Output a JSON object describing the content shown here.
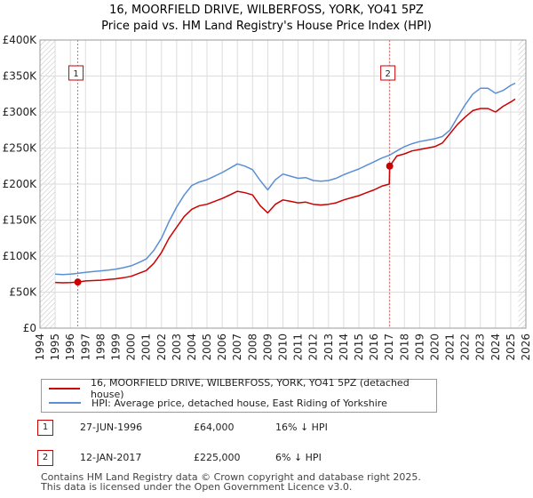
{
  "chart_data": {
    "type": "line",
    "title": "16, MOORFIELD DRIVE, WILBERFOSS, YORK, YO41 5PZ",
    "subtitle": "Price paid vs. HM Land Registry's House Price Index (HPI)",
    "xlabel": "",
    "ylabel": "",
    "xlim": [
      1994,
      2026
    ],
    "ylim": [
      0,
      400000
    ],
    "x_ticks": [
      "1994",
      "1995",
      "1996",
      "1997",
      "1998",
      "1999",
      "2000",
      "2001",
      "2002",
      "2003",
      "2004",
      "2005",
      "2006",
      "2007",
      "2008",
      "2009",
      "2010",
      "2011",
      "2012",
      "2013",
      "2014",
      "2015",
      "2016",
      "2017",
      "2018",
      "2019",
      "2020",
      "2021",
      "2022",
      "2023",
      "2024",
      "2025",
      "2026"
    ],
    "y_ticks": [
      {
        "value": 0,
        "label": "£0"
      },
      {
        "value": 50000,
        "label": "£50K"
      },
      {
        "value": 100000,
        "label": "£100K"
      },
      {
        "value": 150000,
        "label": "£150K"
      },
      {
        "value": 200000,
        "label": "£200K"
      },
      {
        "value": 250000,
        "label": "£250K"
      },
      {
        "value": 300000,
        "label": "£300K"
      },
      {
        "value": 350000,
        "label": "£350K"
      },
      {
        "value": 400000,
        "label": "£400K"
      }
    ],
    "grid": true,
    "series": [
      {
        "name": "16, MOORFIELD DRIVE, WILBERFOSS, YORK, YO41 5PZ (detached house)",
        "color": "#cc0000",
        "x": [
          1995.0,
          1995.5,
          1996.0,
          1996.49,
          1997.0,
          1997.5,
          1998.0,
          1998.5,
          1999.0,
          1999.5,
          2000.0,
          2000.5,
          2001.0,
          2001.5,
          2002.0,
          2002.5,
          2003.0,
          2003.5,
          2004.0,
          2004.5,
          2005.0,
          2005.5,
          2006.0,
          2006.5,
          2007.0,
          2007.5,
          2008.0,
          2008.5,
          2009.0,
          2009.5,
          2010.0,
          2010.5,
          2011.0,
          2011.5,
          2012.0,
          2012.5,
          2013.0,
          2013.5,
          2014.0,
          2014.5,
          2015.0,
          2015.5,
          2016.0,
          2016.5,
          2017.0,
          2017.03,
          2017.5,
          2018.0,
          2018.5,
          2019.0,
          2019.5,
          2020.0,
          2020.5,
          2021.0,
          2021.5,
          2022.0,
          2022.5,
          2023.0,
          2023.5,
          2024.0,
          2024.5,
          2025.0,
          2025.3
        ],
        "values": [
          63500,
          63000,
          63200,
          64000,
          65500,
          66000,
          66500,
          67500,
          68500,
          70000,
          72000,
          76000,
          80000,
          90000,
          105000,
          125000,
          140000,
          155000,
          165000,
          170000,
          172000,
          176000,
          180000,
          185000,
          190000,
          188000,
          185000,
          170000,
          160000,
          172000,
          178000,
          176000,
          174000,
          175000,
          172000,
          171000,
          172000,
          174000,
          178000,
          181000,
          184000,
          188000,
          192000,
          197000,
          200000,
          225000,
          239000,
          242000,
          246000,
          248000,
          250000,
          252000,
          257000,
          270000,
          283000,
          293000,
          302000,
          305000,
          305000,
          300000,
          308000,
          314000,
          318000
        ]
      },
      {
        "name": "HPI: Average price, detached house, East Riding of Yorkshire",
        "color": "#5b8fd4",
        "x": [
          1995.0,
          1995.5,
          1996.0,
          1996.49,
          1997.0,
          1997.5,
          1998.0,
          1998.5,
          1999.0,
          1999.5,
          2000.0,
          2000.5,
          2001.0,
          2001.5,
          2002.0,
          2002.5,
          2003.0,
          2003.5,
          2004.0,
          2004.5,
          2005.0,
          2005.5,
          2006.0,
          2006.5,
          2007.0,
          2007.5,
          2008.0,
          2008.5,
          2009.0,
          2009.5,
          2010.0,
          2010.5,
          2011.0,
          2011.5,
          2012.0,
          2012.5,
          2013.0,
          2013.5,
          2014.0,
          2014.5,
          2015.0,
          2015.5,
          2016.0,
          2016.5,
          2017.0,
          2017.5,
          2018.0,
          2018.5,
          2019.0,
          2019.5,
          2020.0,
          2020.5,
          2021.0,
          2021.5,
          2022.0,
          2022.5,
          2023.0,
          2023.5,
          2024.0,
          2024.5,
          2025.0,
          2025.3
        ],
        "values": [
          75000,
          74500,
          75000,
          76000,
          77500,
          78500,
          79500,
          80500,
          82000,
          84000,
          86500,
          91000,
          96000,
          108000,
          125000,
          148000,
          168000,
          185000,
          198000,
          203000,
          206000,
          211000,
          216000,
          222000,
          228000,
          225000,
          220000,
          205000,
          192000,
          206000,
          214000,
          211000,
          208000,
          209000,
          205000,
          204000,
          205000,
          208000,
          213000,
          217000,
          221000,
          226000,
          231000,
          236000,
          240000,
          246000,
          252000,
          256000,
          259000,
          261000,
          263000,
          266000,
          275000,
          293000,
          310000,
          325000,
          333000,
          333000,
          326000,
          330000,
          337000,
          340000
        ]
      }
    ],
    "markers": [
      {
        "label": "1",
        "x": 1996.49,
        "value": 64000
      },
      {
        "label": "2",
        "x": 2017.03,
        "value": 225000
      }
    ]
  },
  "legend": {
    "property": "16, MOORFIELD DRIVE, WILBERFOSS, YORK, YO41 5PZ (detached house)",
    "hpi": "HPI: Average price, detached house, East Riding of Yorkshire"
  },
  "sales": [
    {
      "num": "1",
      "date": "27-JUN-1996",
      "price": "£64,000",
      "hpi": "16% ↓ HPI"
    },
    {
      "num": "2",
      "date": "12-JAN-2017",
      "price": "£225,000",
      "hpi": "6% ↓ HPI"
    }
  ],
  "footer": {
    "line1": "Contains HM Land Registry data © Crown copyright and database right 2025.",
    "line2": "This data is licensed under the Open Government Licence v3.0."
  },
  "colors": {
    "property": "#cc0000",
    "hpi": "#5b8fd4",
    "grid": "#dddddd",
    "hatch": "#bbbbbb",
    "marker_line": "#e06666"
  }
}
